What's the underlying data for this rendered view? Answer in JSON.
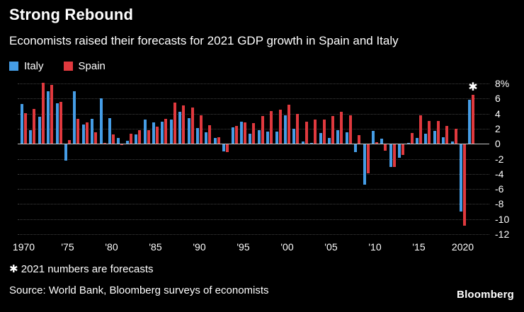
{
  "header": {
    "title": "Strong Rebound",
    "subtitle": "Economists raised their forecasts for 2021 GDP growth in Spain and Italy"
  },
  "legend": {
    "items": [
      {
        "label": "Italy",
        "color": "#459de6"
      },
      {
        "label": "Spain",
        "color": "#e0393e"
      }
    ]
  },
  "chart_data": {
    "type": "bar",
    "x": [
      1970,
      1971,
      1972,
      1973,
      1974,
      1975,
      1976,
      1977,
      1978,
      1979,
      1980,
      1981,
      1982,
      1983,
      1984,
      1985,
      1986,
      1987,
      1988,
      1989,
      1990,
      1991,
      1992,
      1993,
      1994,
      1995,
      1996,
      1997,
      1998,
      1999,
      2000,
      2001,
      2002,
      2003,
      2004,
      2005,
      2006,
      2007,
      2008,
      2009,
      2010,
      2011,
      2012,
      2013,
      2014,
      2015,
      2016,
      2017,
      2018,
      2019,
      2020,
      2021
    ],
    "series": [
      {
        "name": "Italy",
        "color": "#459de6",
        "values": [
          5.3,
          1.8,
          3.6,
          7.0,
          5.4,
          -2.1,
          7.0,
          2.6,
          3.3,
          6.0,
          3.4,
          0.8,
          0.4,
          1.2,
          3.2,
          2.8,
          2.9,
          3.2,
          4.2,
          3.4,
          2.1,
          1.5,
          0.8,
          -0.9,
          2.2,
          2.9,
          1.3,
          1.8,
          1.6,
          1.6,
          3.8,
          2.0,
          0.3,
          0.1,
          1.4,
          0.8,
          1.8,
          1.5,
          -1.0,
          -5.3,
          1.7,
          0.7,
          -3.0,
          -1.8,
          0.0,
          0.8,
          1.3,
          1.7,
          0.9,
          0.3,
          -8.9,
          5.8
        ]
      },
      {
        "name": "Spain",
        "color": "#e0393e",
        "values": [
          4.1,
          4.6,
          8.1,
          7.8,
          5.6,
          0.5,
          3.3,
          2.8,
          1.5,
          0.1,
          1.2,
          -0.1,
          1.3,
          1.8,
          1.8,
          2.3,
          3.3,
          5.5,
          5.1,
          4.8,
          3.8,
          2.5,
          0.9,
          -1.0,
          2.4,
          2.8,
          2.7,
          3.7,
          4.3,
          4.5,
          5.2,
          4.0,
          2.9,
          3.2,
          3.2,
          3.7,
          4.2,
          3.8,
          1.1,
          -3.8,
          0.2,
          -0.8,
          -3.0,
          -1.4,
          1.4,
          3.8,
          3.0,
          3.0,
          2.4,
          2.0,
          -10.8,
          6.5
        ]
      }
    ],
    "ylim": [
      -12,
      8
    ],
    "yticks": [
      8,
      6,
      4,
      2,
      0,
      -2,
      -4,
      -6,
      -8,
      -10,
      -12
    ],
    "ytick_labels": [
      "8%",
      "6",
      "4",
      "2",
      "0",
      "-2",
      "-4",
      "-6",
      "-8",
      "-10",
      "-12"
    ],
    "xticks": [
      1970,
      1975,
      1980,
      1985,
      1990,
      1995,
      2000,
      2005,
      2010,
      2015,
      2020
    ],
    "xtick_labels": [
      "1970",
      "'75",
      "'80",
      "'85",
      "'90",
      "'95",
      "'00",
      "'05",
      "'10",
      "'15",
      "2020"
    ],
    "annotation": {
      "text": "✱",
      "x": 2021,
      "meaning": "2021 numbers are forecasts"
    },
    "title": "Strong Rebound",
    "grid": "horizontal-dotted",
    "legend_position": "top-left"
  },
  "footer": {
    "footnote": "✱ 2021 numbers are forecasts",
    "source": "Source: World Bank, Bloomberg surveys of economists",
    "logo": "Bloomberg"
  }
}
